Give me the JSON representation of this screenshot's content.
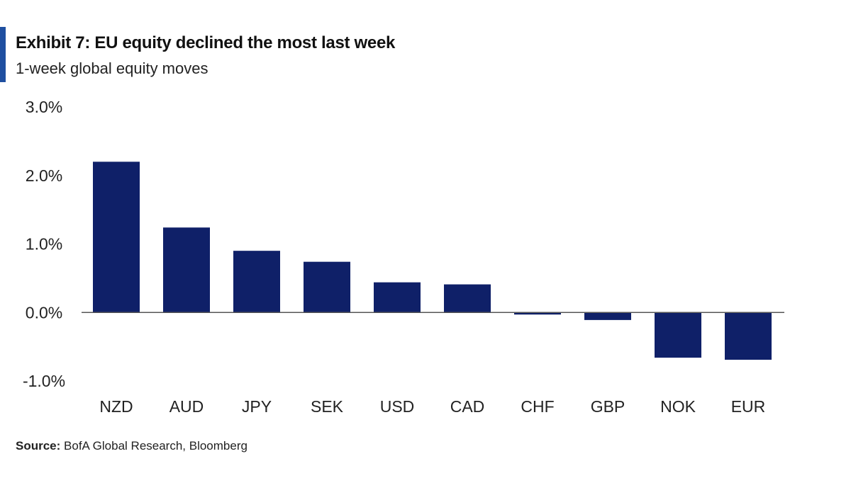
{
  "header": {
    "title": "Exhibit 7: EU equity declined the most last week",
    "subtitle": "1-week global equity moves"
  },
  "source": {
    "label": "Source:",
    "text": "BofA Global Research, Bloomberg"
  },
  "colors": {
    "bar": "#0f2068",
    "accent": "#1f4fa0",
    "axis": "#555555"
  },
  "chart_data": {
    "type": "bar",
    "categories": [
      "NZD",
      "AUD",
      "JPY",
      "SEK",
      "USD",
      "CAD",
      "CHF",
      "GBP",
      "NOK",
      "EUR"
    ],
    "values": [
      2.2,
      1.24,
      0.9,
      0.74,
      0.44,
      0.41,
      -0.03,
      -0.11,
      -0.66,
      -0.69
    ],
    "ylim": [
      -1.0,
      3.0
    ],
    "yticks": [
      3.0,
      2.0,
      1.0,
      0.0,
      -1.0
    ],
    "ytick_labels": [
      "3.0%",
      "2.0%",
      "1.0%",
      "0.0%",
      "-1.0%"
    ],
    "title": "Exhibit 7: EU equity declined the most last week",
    "subtitle": "1-week global equity moves",
    "xlabel": "",
    "ylabel": "",
    "grid": false,
    "legend": "none"
  }
}
